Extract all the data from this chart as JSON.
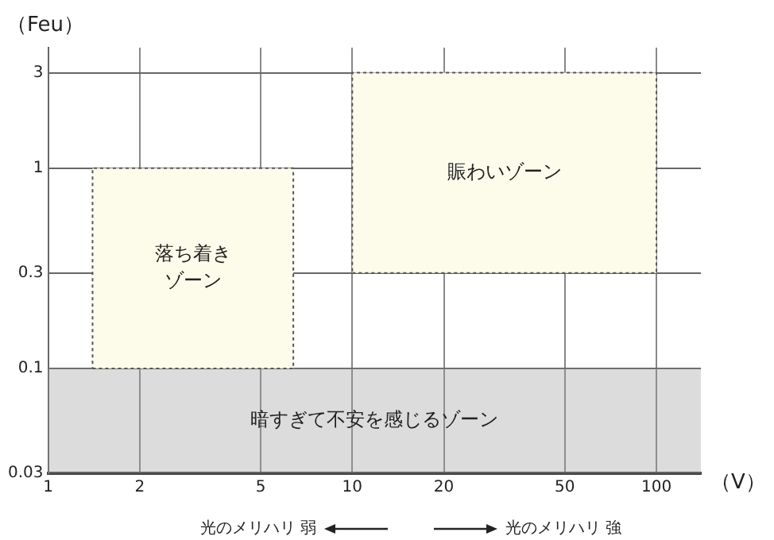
{
  "chart_data": {
    "type": "area",
    "xlabel": "（V）",
    "ylabel": "（Feu）",
    "log": "xy",
    "xlim": [
      1,
      140
    ],
    "xticks": [
      1,
      2,
      5,
      10,
      20,
      50,
      100
    ],
    "ylim": [
      0.03,
      4
    ],
    "yticks": [
      0.03,
      0.1,
      0.3,
      1,
      3
    ],
    "grid": true,
    "series": [
      {
        "name": "落ち着きゾーン",
        "x": [
          1.4,
          6.4,
          6.4,
          1.4,
          1.4
        ],
        "values": [
          0.1,
          0.1,
          1,
          1,
          0.1
        ],
        "color": "#fdfbea",
        "line_style": "dotted"
      },
      {
        "name": "賑わいゾーン",
        "x": [
          10,
          100,
          100,
          10,
          10
        ],
        "values": [
          0.3,
          0.3,
          3,
          3,
          0.3
        ],
        "color": "#fdfbea",
        "line_style": "dotted"
      }
    ],
    "bands": [
      {
        "axis": "y",
        "from": 0.03,
        "to": 0.1,
        "label": "暗すぎて不安を感じるゾーン",
        "color": "#9a9a9a"
      }
    ],
    "annotations": [
      "光のメリハリ 弱",
      "光のメリハリ 強"
    ]
  }
}
